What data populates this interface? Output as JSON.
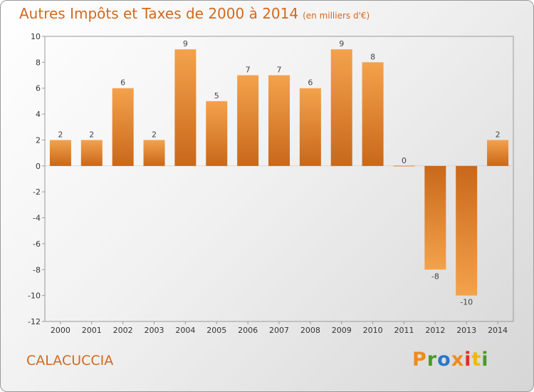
{
  "chart_data": {
    "type": "bar",
    "title": "Autres Impôts et Taxes de 2000 à 2014",
    "unit_label": "(en milliers d'€)",
    "categories": [
      "2000",
      "2001",
      "2002",
      "2003",
      "2004",
      "2005",
      "2006",
      "2007",
      "2008",
      "2009",
      "2010",
      "2011",
      "2012",
      "2013",
      "2014"
    ],
    "values": [
      2,
      2,
      6,
      2,
      9,
      5,
      7,
      7,
      6,
      9,
      8,
      0,
      -8,
      -10,
      2
    ],
    "data_labels": [
      "2",
      "2",
      "6",
      "2",
      "9",
      "5",
      "7",
      "7",
      "6",
      "9",
      "8",
      "0",
      "-8",
      "-10",
      "2"
    ],
    "ylim": [
      -12,
      10
    ],
    "yticks": [
      -12,
      -10,
      -8,
      -6,
      -4,
      -2,
      0,
      2,
      4,
      6,
      8,
      10
    ],
    "grid": false,
    "bar_color_light": "#f4a24c",
    "bar_color_dark": "#c8681a"
  },
  "footer": {
    "commune": "CALACUCCIA",
    "brand": "Proxiti"
  },
  "brand_colors": [
    "#f08a1c",
    "#4a9a2a",
    "#2a78c8",
    "#f08a1c",
    "#e03020",
    "#f0b800",
    "#4a9a2a"
  ]
}
